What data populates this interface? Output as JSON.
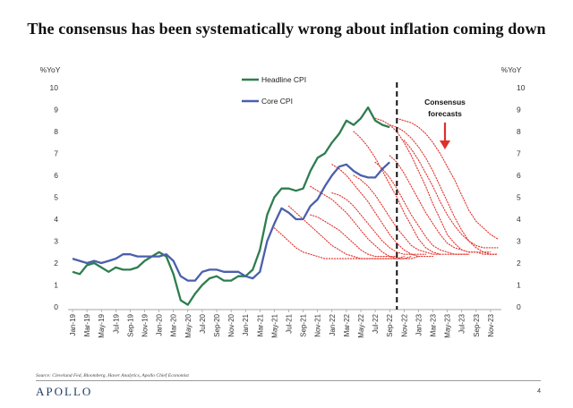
{
  "title": "The consensus has been systematically wrong about inflation coming down",
  "source": "Source: Cleveland Fed, Bloomberg, Haver Analytics, Apollo Chief Economist",
  "brand": "APOLLO",
  "page_number": "4",
  "colors": {
    "headline": "#2e7d4f",
    "core": "#4a5fad",
    "forecast": "#e0302a",
    "annotation_arrow": "#e0302a",
    "divider": "#111111"
  },
  "chart_data": {
    "type": "line",
    "ylabel_left": "%YoY",
    "ylabel_right": "%YoY",
    "ylim": [
      0,
      10
    ],
    "y_ticks": [
      0,
      1,
      2,
      3,
      4,
      5,
      6,
      7,
      8,
      9,
      10
    ],
    "x_tick_labels": [
      "Jan-19",
      "Mar-19",
      "May-19",
      "Jul-19",
      "Sep-19",
      "Nov-19",
      "Jan-20",
      "Mar-20",
      "May-20",
      "Jul-20",
      "Sep-20",
      "Nov-20",
      "Jan-21",
      "Mar-21",
      "May-21",
      "Jul-21",
      "Sep-21",
      "Nov-21",
      "Jan-22",
      "Mar-22",
      "May-22",
      "Jul-22",
      "Sep-22",
      "Nov-22",
      "Jan-23",
      "Mar-23",
      "May-23",
      "Jul-23",
      "Sep-23",
      "Nov-23"
    ],
    "x_months": [
      "Jan-19",
      "Feb-19",
      "Mar-19",
      "Apr-19",
      "May-19",
      "Jun-19",
      "Jul-19",
      "Aug-19",
      "Sep-19",
      "Oct-19",
      "Nov-19",
      "Dec-19",
      "Jan-20",
      "Feb-20",
      "Mar-20",
      "Apr-20",
      "May-20",
      "Jun-20",
      "Jul-20",
      "Aug-20",
      "Sep-20",
      "Oct-20",
      "Nov-20",
      "Dec-20",
      "Jan-21",
      "Feb-21",
      "Mar-21",
      "Apr-21",
      "May-21",
      "Jun-21",
      "Jul-21",
      "Aug-21",
      "Sep-21",
      "Oct-21",
      "Nov-21",
      "Dec-21",
      "Jan-22",
      "Feb-22",
      "Mar-22",
      "Apr-22",
      "May-22",
      "Jun-22",
      "Jul-22",
      "Aug-22",
      "Sep-22",
      "Oct-22",
      "Nov-22",
      "Dec-22",
      "Jan-23",
      "Feb-23",
      "Mar-23",
      "Apr-23",
      "May-23",
      "Jun-23",
      "Jul-23",
      "Aug-23",
      "Sep-23",
      "Oct-23",
      "Nov-23",
      "Dec-23"
    ],
    "series": [
      {
        "name": "Headline CPI",
        "start": "Jan-19",
        "values": [
          1.6,
          1.5,
          1.9,
          2.0,
          1.8,
          1.6,
          1.8,
          1.7,
          1.7,
          1.8,
          2.1,
          2.3,
          2.5,
          2.3,
          1.5,
          0.3,
          0.1,
          0.6,
          1.0,
          1.3,
          1.4,
          1.2,
          1.2,
          1.4,
          1.4,
          1.7,
          2.6,
          4.2,
          5.0,
          5.4,
          5.4,
          5.3,
          5.4,
          6.2,
          6.8,
          7.0,
          7.5,
          7.9,
          8.5,
          8.3,
          8.6,
          9.1,
          8.5,
          8.3,
          8.2
        ]
      },
      {
        "name": "Core CPI",
        "start": "Jan-19",
        "values": [
          2.2,
          2.1,
          2.0,
          2.1,
          2.0,
          2.1,
          2.2,
          2.4,
          2.4,
          2.3,
          2.3,
          2.3,
          2.3,
          2.4,
          2.1,
          1.4,
          1.2,
          1.2,
          1.6,
          1.7,
          1.7,
          1.6,
          1.6,
          1.6,
          1.4,
          1.3,
          1.6,
          3.0,
          3.8,
          4.5,
          4.3,
          4.0,
          4.0,
          4.6,
          4.9,
          5.5,
          6.0,
          6.4,
          6.5,
          6.2,
          6.0,
          5.9,
          5.9,
          6.3,
          6.6
        ]
      }
    ],
    "forecast_series": [
      {
        "start": "May-21",
        "values": [
          3.6,
          3.3,
          3.0,
          2.7,
          2.5,
          2.4,
          2.3,
          2.2,
          2.2,
          2.2,
          2.2,
          2.2,
          2.2,
          2.2,
          2.2,
          2.2,
          2.2,
          2.2,
          2.3
        ]
      },
      {
        "start": "Jul-21",
        "values": [
          4.6,
          4.3,
          4.0,
          3.7,
          3.4,
          3.1,
          2.8,
          2.6,
          2.4,
          2.3,
          2.2,
          2.2,
          2.2,
          2.2,
          2.2,
          2.2,
          2.2,
          2.3
        ]
      },
      {
        "start": "Oct-21",
        "values": [
          5.5,
          5.3,
          5.1,
          4.9,
          4.6,
          4.3,
          3.9,
          3.5,
          3.1,
          2.8,
          2.5,
          2.3,
          2.2,
          2.2,
          2.2,
          2.3
        ]
      },
      {
        "start": "Jan-22",
        "values": [
          6.5,
          6.3,
          6.0,
          5.6,
          5.2,
          4.8,
          4.3,
          3.8,
          3.3,
          2.9,
          2.6,
          2.4,
          2.3,
          2.3,
          2.3
        ]
      },
      {
        "start": "Apr-22",
        "values": [
          8.0,
          7.7,
          7.3,
          6.8,
          6.2,
          5.6,
          5.0,
          4.3,
          3.7,
          3.1,
          2.7,
          2.5,
          2.4,
          2.4,
          2.4,
          2.4,
          2.4
        ]
      },
      {
        "start": "Jul-22",
        "values": [
          8.6,
          8.5,
          8.3,
          8.0,
          7.5,
          6.9,
          6.2,
          5.5,
          4.7,
          4.0,
          3.3,
          2.9,
          2.6,
          2.5,
          2.5,
          2.4,
          2.4,
          2.4
        ]
      },
      {
        "start": "Sep-22",
        "values": [
          8.3,
          8.2,
          8.0,
          7.7,
          7.3,
          6.8,
          6.2,
          5.5,
          4.8,
          4.1,
          3.5,
          3.0,
          2.7,
          2.5,
          2.4,
          2.4
        ]
      },
      {
        "start": "Oct-22",
        "values": [
          8.6,
          8.5,
          8.4,
          8.2,
          7.9,
          7.5,
          7.0,
          6.4,
          5.8,
          5.1,
          4.4,
          3.9,
          3.6,
          3.3,
          3.1
        ]
      },
      {
        "start": "Oct-21",
        "values": [
          4.2,
          4.1,
          3.9,
          3.7,
          3.5,
          3.2,
          2.9,
          2.6,
          2.4,
          2.3,
          2.3,
          2.3,
          2.3
        ]
      },
      {
        "start": "Jan-22",
        "values": [
          5.2,
          5.1,
          4.9,
          4.6,
          4.2,
          3.8,
          3.4,
          3.0,
          2.7,
          2.5,
          2.4,
          2.4,
          2.4,
          2.4
        ]
      },
      {
        "start": "Apr-22",
        "values": [
          6.0,
          5.8,
          5.5,
          5.1,
          4.6,
          4.1,
          3.6,
          3.2,
          2.8,
          2.6,
          2.5,
          2.4,
          2.4
        ]
      },
      {
        "start": "Jul-22",
        "values": [
          6.6,
          6.3,
          5.9,
          5.4,
          4.8,
          4.2,
          3.7,
          3.2,
          2.8,
          2.6,
          2.5,
          2.4,
          2.4,
          2.4
        ]
      },
      {
        "start": "Sep-22",
        "values": [
          6.9,
          6.6,
          6.1,
          5.5,
          4.9,
          4.3,
          3.8,
          3.3,
          2.9,
          2.7,
          2.6,
          2.5,
          2.5,
          2.5,
          2.5
        ]
      },
      {
        "start": "Nov-22",
        "values": [
          7.6,
          7.2,
          6.7,
          6.1,
          5.5,
          4.8,
          4.2,
          3.7,
          3.3,
          3.0,
          2.8,
          2.7,
          2.7,
          2.7
        ]
      }
    ],
    "legend": [
      {
        "name": "Headline CPI",
        "color": "#2e7d4f"
      },
      {
        "name": "Core CPI",
        "color": "#4a5fad"
      }
    ],
    "legend_position": "top-left",
    "divider_at": "Oct-22",
    "annotation": {
      "text_line1": "Consensus",
      "text_line2": "forecasts"
    },
    "grid": false
  }
}
